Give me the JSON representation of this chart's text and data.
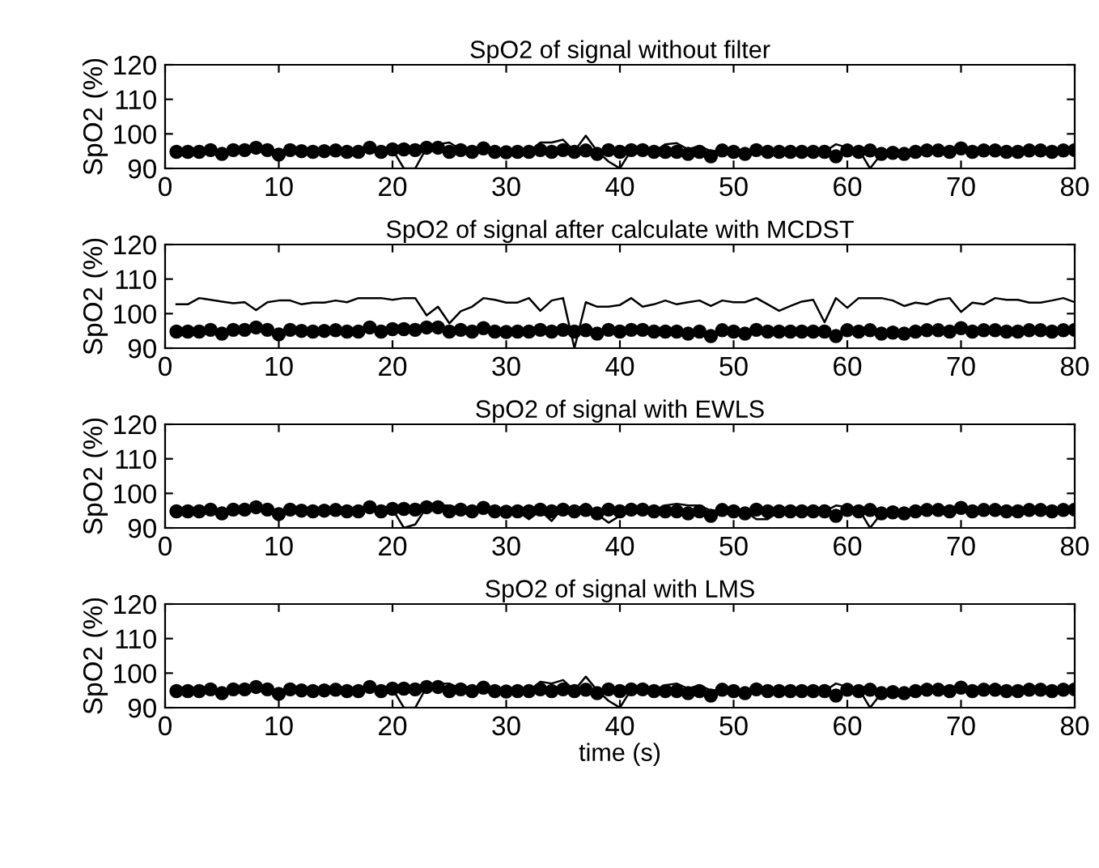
{
  "chart_data": [
    {
      "type": "line",
      "title": "SpO2 of signal without filter",
      "ylabel": "SpO2 (%)",
      "xlim": [
        0,
        80
      ],
      "ylim": [
        90,
        120
      ],
      "xticks": [
        0,
        10,
        20,
        30,
        40,
        50,
        60,
        70,
        80
      ],
      "yticks": [
        90,
        100,
        110,
        120
      ],
      "grid": false,
      "x": [
        1,
        2,
        3,
        4,
        5,
        6,
        7,
        8,
        9,
        10,
        11,
        12,
        13,
        14,
        15,
        16,
        17,
        18,
        19,
        20,
        21,
        22,
        23,
        24,
        25,
        26,
        27,
        28,
        29,
        30,
        31,
        32,
        33,
        34,
        35,
        36,
        37,
        38,
        39,
        40,
        41,
        42,
        43,
        44,
        45,
        46,
        47,
        48,
        49,
        50,
        51,
        52,
        53,
        54,
        55,
        56,
        57,
        58,
        59,
        60,
        61,
        62,
        63,
        64,
        65,
        66,
        67,
        68,
        69,
        70,
        71,
        72,
        73,
        74,
        75,
        76,
        77,
        78,
        79,
        80
      ],
      "series": [
        {
          "color": "#000000",
          "marker": "none",
          "values": [
            94.8,
            94.8,
            94.8,
            95.3,
            94.8,
            95.3,
            95.3,
            96,
            95.3,
            95,
            95.3,
            95,
            94.8,
            95,
            95.2,
            94.8,
            94.8,
            96,
            94.8,
            95.5,
            90,
            90,
            96,
            97,
            97.5,
            95.5,
            96,
            95.8,
            94.8,
            94.7,
            94.8,
            94.8,
            97.5,
            97.5,
            98.3,
            95,
            99.5,
            95,
            92,
            90,
            95.3,
            95.3,
            94.8,
            97,
            97.3,
            95.5,
            96.5,
            95,
            95.2,
            94.8,
            94.8,
            95.3,
            94.8,
            94.8,
            94.8,
            94.8,
            94.8,
            94.8,
            97,
            96,
            95.5,
            90,
            94.2,
            94.5,
            95,
            94.8,
            95.2,
            95.2,
            94.8,
            95.8,
            94.8,
            95.2,
            95.2,
            94.8,
            95.5,
            95.2,
            95.2,
            94.8,
            95.2,
            95.3
          ]
        },
        {
          "type": "scatter",
          "color": "#000000",
          "marker": "circle",
          "values": [
            94.8,
            94.8,
            94.8,
            95.3,
            94.2,
            95.3,
            95.3,
            96,
            95.3,
            94,
            95.3,
            95,
            94.8,
            95,
            95.2,
            94.8,
            94.8,
            96,
            94.8,
            95.5,
            95.5,
            95.3,
            96,
            96,
            94.8,
            95.3,
            94.8,
            95.8,
            94.8,
            94.7,
            94.8,
            94.8,
            95.3,
            94.8,
            95.3,
            94.8,
            95.2,
            94.2,
            95.3,
            94.8,
            95.3,
            95.3,
            94.8,
            94.8,
            94.8,
            94.2,
            94.8,
            93.5,
            95.2,
            94.8,
            94.2,
            95.3,
            94.8,
            94.8,
            94.8,
            94.8,
            94.8,
            94.8,
            93.5,
            95.2,
            94.8,
            95.2,
            94.2,
            94.5,
            94.2,
            94.8,
            95.2,
            95.2,
            94.8,
            95.8,
            94.8,
            95.2,
            95.2,
            94.8,
            94.8,
            95.2,
            95.2,
            94.8,
            95.2,
            95.3
          ]
        }
      ]
    },
    {
      "type": "line",
      "title": "SpO2 of signal after calculate with MCDST",
      "ylabel": "SpO2 (%)",
      "xlim": [
        0,
        80
      ],
      "ylim": [
        90,
        120
      ],
      "xticks": [
        0,
        10,
        20,
        30,
        40,
        50,
        60,
        70,
        80
      ],
      "yticks": [
        90,
        100,
        110,
        120
      ],
      "grid": false,
      "x": [
        1,
        2,
        3,
        4,
        5,
        6,
        7,
        8,
        9,
        10,
        11,
        12,
        13,
        14,
        15,
        16,
        17,
        18,
        19,
        20,
        21,
        22,
        23,
        24,
        25,
        26,
        27,
        28,
        29,
        30,
        31,
        32,
        33,
        34,
        35,
        36,
        37,
        38,
        39,
        40,
        41,
        42,
        43,
        44,
        45,
        46,
        47,
        48,
        49,
        50,
        51,
        52,
        53,
        54,
        55,
        56,
        57,
        58,
        59,
        60,
        61,
        62,
        63,
        64,
        65,
        66,
        67,
        68,
        69,
        70,
        71,
        72,
        73,
        74,
        75,
        76,
        77,
        78,
        79,
        80
      ],
      "series": [
        {
          "color": "#000000",
          "marker": "none",
          "values": [
            102.7,
            102.7,
            104.5,
            104,
            103.5,
            103,
            103.3,
            101,
            103.3,
            103.8,
            103.8,
            102.7,
            103.2,
            103.2,
            103.8,
            103.3,
            104.5,
            104.5,
            104.5,
            104,
            104.5,
            104.5,
            99.5,
            102,
            97.2,
            100.7,
            102,
            104.5,
            104,
            103.2,
            103.2,
            104.5,
            100.8,
            103.8,
            104.5,
            90,
            103.3,
            102,
            102,
            102.5,
            104.5,
            102,
            102.7,
            103.8,
            102.7,
            103.3,
            103.8,
            102.2,
            103.8,
            103.3,
            103.3,
            104.5,
            102.7,
            100.8,
            102.2,
            103.5,
            104,
            97.5,
            104.5,
            101.7,
            104.5,
            104.5,
            104.5,
            103.8,
            102.2,
            103.2,
            102.7,
            104,
            104.5,
            100.5,
            103.2,
            102.7,
            104.5,
            104,
            104,
            103.2,
            103.2,
            103.8,
            104.5,
            103.3
          ]
        },
        {
          "type": "scatter",
          "color": "#000000",
          "marker": "circle",
          "values": [
            94.8,
            94.8,
            94.8,
            95.3,
            94.2,
            95.3,
            95.3,
            96,
            95.3,
            94,
            95.3,
            95,
            94.8,
            95,
            95.2,
            94.8,
            94.8,
            96,
            94.8,
            95.5,
            95.5,
            95.3,
            96,
            96,
            94.8,
            95.3,
            94.8,
            95.8,
            94.8,
            94.7,
            94.8,
            94.8,
            95.3,
            94.8,
            95.3,
            94.8,
            95.2,
            94.2,
            95.3,
            94.8,
            95.3,
            95.3,
            94.8,
            94.8,
            94.8,
            94.2,
            94.8,
            93.5,
            95.2,
            94.8,
            94.2,
            95.3,
            94.8,
            94.8,
            94.8,
            94.8,
            94.8,
            94.8,
            93.5,
            95.2,
            94.8,
            95.2,
            94.2,
            94.5,
            94.2,
            94.8,
            95.2,
            95.2,
            94.8,
            95.8,
            94.8,
            95.2,
            95.2,
            94.8,
            94.8,
            95.2,
            95.2,
            94.8,
            95.2,
            95.3
          ]
        }
      ]
    },
    {
      "type": "line",
      "title": "SpO2 of signal with EWLS",
      "ylabel": "SpO2 (%)",
      "xlim": [
        0,
        80
      ],
      "ylim": [
        90,
        120
      ],
      "xticks": [
        0,
        10,
        20,
        30,
        40,
        50,
        60,
        70,
        80
      ],
      "yticks": [
        90,
        100,
        110,
        120
      ],
      "grid": false,
      "x": [
        1,
        2,
        3,
        4,
        5,
        6,
        7,
        8,
        9,
        10,
        11,
        12,
        13,
        14,
        15,
        16,
        17,
        18,
        19,
        20,
        21,
        22,
        23,
        24,
        25,
        26,
        27,
        28,
        29,
        30,
        31,
        32,
        33,
        34,
        35,
        36,
        37,
        38,
        39,
        40,
        41,
        42,
        43,
        44,
        45,
        46,
        47,
        48,
        49,
        50,
        51,
        52,
        53,
        54,
        55,
        56,
        57,
        58,
        59,
        60,
        61,
        62,
        63,
        64,
        65,
        66,
        67,
        68,
        69,
        70,
        71,
        72,
        73,
        74,
        75,
        76,
        77,
        78,
        79,
        80
      ],
      "series": [
        {
          "color": "#000000",
          "marker": "none",
          "values": [
            94.8,
            94.8,
            94.8,
            95.3,
            94.8,
            95.3,
            95.3,
            96,
            95.3,
            95,
            95.3,
            95,
            94.8,
            95,
            95.2,
            94.8,
            94.8,
            96,
            94.8,
            95.5,
            90,
            91,
            96,
            96.5,
            96.5,
            95.5,
            96,
            95.8,
            94.8,
            94.7,
            94.8,
            92.5,
            95,
            92,
            96,
            95,
            97,
            94,
            91.5,
            93.5,
            95.3,
            95.3,
            94.8,
            96.5,
            97,
            96.5,
            96.5,
            95,
            95.2,
            94.8,
            94.8,
            92.5,
            92.5,
            94.8,
            94.8,
            94.8,
            94.8,
            94.8,
            96.5,
            96,
            95.5,
            90,
            94.2,
            94.5,
            95,
            94.8,
            95.2,
            95.2,
            94.8,
            95.8,
            94.8,
            95.2,
            95.2,
            94.8,
            95.5,
            95.2,
            95.2,
            94.8,
            95.2,
            95.3
          ]
        },
        {
          "type": "scatter",
          "color": "#000000",
          "marker": "circle",
          "values": [
            94.8,
            94.8,
            94.8,
            95.3,
            94.2,
            95.3,
            95.3,
            96,
            95.3,
            94,
            95.3,
            95,
            94.8,
            95,
            95.2,
            94.8,
            94.8,
            96,
            94.8,
            95.5,
            95.5,
            95.3,
            96,
            96,
            94.8,
            95.3,
            94.8,
            95.8,
            94.8,
            94.7,
            94.8,
            94.8,
            95.3,
            94.8,
            95.3,
            94.8,
            95.2,
            94.2,
            95.3,
            94.8,
            95.3,
            95.3,
            94.8,
            94.8,
            94.8,
            94.2,
            94.8,
            93.5,
            95.2,
            94.8,
            94.2,
            95.3,
            94.8,
            94.8,
            94.8,
            94.8,
            94.8,
            94.8,
            93.5,
            95.2,
            94.8,
            95.2,
            94.2,
            94.5,
            94.2,
            94.8,
            95.2,
            95.2,
            94.8,
            95.8,
            94.8,
            95.2,
            95.2,
            94.8,
            94.8,
            95.2,
            95.2,
            94.8,
            95.2,
            95.3
          ]
        }
      ]
    },
    {
      "type": "line",
      "title": "SpO2 of signal with LMS",
      "xlabel": "time (s)",
      "ylabel": "SpO2 (%)",
      "xlim": [
        0,
        80
      ],
      "ylim": [
        90,
        120
      ],
      "xticks": [
        0,
        10,
        20,
        30,
        40,
        50,
        60,
        70,
        80
      ],
      "yticks": [
        90,
        100,
        110,
        120
      ],
      "grid": false,
      "x": [
        1,
        2,
        3,
        4,
        5,
        6,
        7,
        8,
        9,
        10,
        11,
        12,
        13,
        14,
        15,
        16,
        17,
        18,
        19,
        20,
        21,
        22,
        23,
        24,
        25,
        26,
        27,
        28,
        29,
        30,
        31,
        32,
        33,
        34,
        35,
        36,
        37,
        38,
        39,
        40,
        41,
        42,
        43,
        44,
        45,
        46,
        47,
        48,
        49,
        50,
        51,
        52,
        53,
        54,
        55,
        56,
        57,
        58,
        59,
        60,
        61,
        62,
        63,
        64,
        65,
        66,
        67,
        68,
        69,
        70,
        71,
        72,
        73,
        74,
        75,
        76,
        77,
        78,
        79,
        80
      ],
      "series": [
        {
          "color": "#000000",
          "marker": "none",
          "values": [
            94.8,
            94.8,
            94.8,
            95.3,
            94.8,
            95.3,
            95.3,
            96,
            95.3,
            95,
            95.3,
            95,
            94.8,
            95,
            95.2,
            94.8,
            94.8,
            96,
            94.8,
            95.5,
            90,
            90,
            96,
            97,
            97,
            95.5,
            96,
            95.8,
            94.8,
            94.7,
            94.8,
            94.8,
            97.5,
            97,
            98,
            95,
            99,
            95,
            92,
            90,
            95.3,
            95.3,
            94.8,
            96.5,
            97,
            95.5,
            96.5,
            95,
            95.2,
            94.8,
            94.8,
            95.3,
            94.8,
            94.8,
            94.8,
            94.8,
            94.8,
            94.8,
            97,
            96,
            95.5,
            90,
            94.2,
            94.5,
            95,
            94.8,
            95.2,
            95.2,
            94.8,
            95.8,
            94.8,
            95.2,
            95.2,
            94.8,
            95.5,
            95.2,
            95.2,
            94.8,
            95.2,
            95.3
          ]
        },
        {
          "type": "scatter",
          "color": "#000000",
          "marker": "circle",
          "values": [
            94.8,
            94.8,
            94.8,
            95.3,
            94.2,
            95.3,
            95.3,
            96,
            95.3,
            94,
            95.3,
            95,
            94.8,
            95,
            95.2,
            94.8,
            94.8,
            96,
            94.8,
            95.5,
            95.5,
            95.3,
            96,
            96,
            94.8,
            95.3,
            94.8,
            95.8,
            94.8,
            94.7,
            94.8,
            94.8,
            95.3,
            94.8,
            95.3,
            94.8,
            95.2,
            94.2,
            95.3,
            94.8,
            95.3,
            95.3,
            94.8,
            94.8,
            94.8,
            94.2,
            94.8,
            93.5,
            95.2,
            94.8,
            94.2,
            95.3,
            94.8,
            94.8,
            94.8,
            94.8,
            94.8,
            94.8,
            93.5,
            95.2,
            94.8,
            95.2,
            94.2,
            94.5,
            94.2,
            94.8,
            95.2,
            95.2,
            94.8,
            95.8,
            94.8,
            95.2,
            95.2,
            94.8,
            94.8,
            95.2,
            95.2,
            94.8,
            95.2,
            95.3
          ]
        }
      ]
    }
  ]
}
